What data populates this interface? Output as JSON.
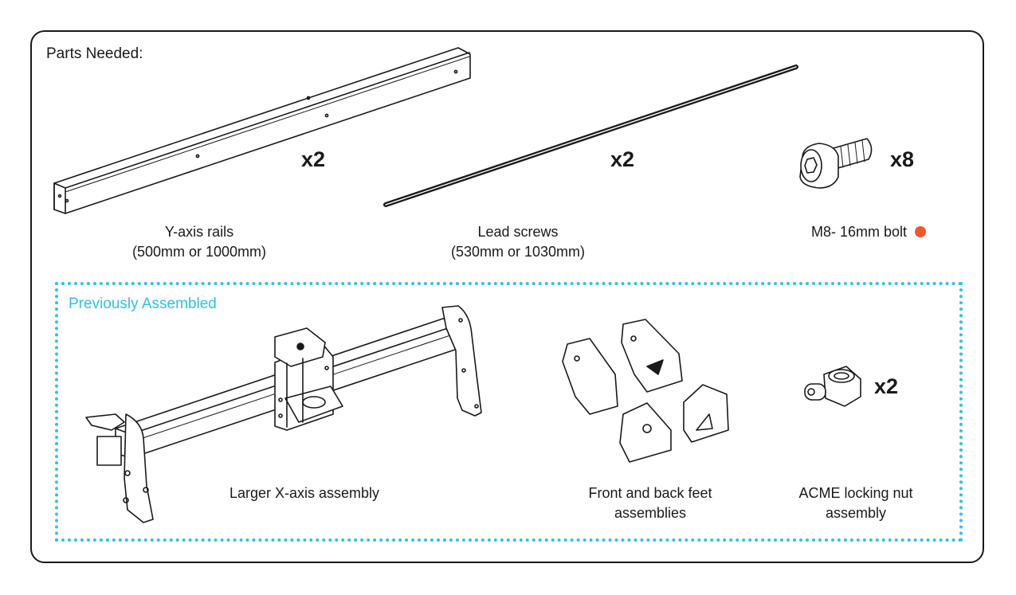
{
  "heading": "Parts Needed:",
  "parts": [
    {
      "quantity": "x2",
      "label_line1": "Y-axis rails",
      "label_line2": "(500mm or 1000mm)",
      "icon": "y-axis-rail"
    },
    {
      "quantity": "x2",
      "label_line1": "Lead screws",
      "label_line2": "(530mm or 1030mm)",
      "icon": "lead-screw"
    },
    {
      "quantity": "x8",
      "label_line1": "M8- 16mm bolt",
      "icon": "m8-bolt",
      "marker_color": "#f0562d"
    }
  ],
  "previously_assembled": {
    "title": "Previously Assembled",
    "title_color": "#2fc1e9",
    "border_color": "#2fc1e9",
    "items": [
      {
        "label_line1": "Larger X-axis assembly",
        "icon": "x-axis-assembly"
      },
      {
        "label_line1": "Front and back feet",
        "label_line2": "assemblies",
        "icon": "feet-assemblies"
      },
      {
        "quantity": "x2",
        "label_line1": "ACME locking nut",
        "label_line2": "assembly",
        "icon": "acme-nut"
      }
    ]
  }
}
